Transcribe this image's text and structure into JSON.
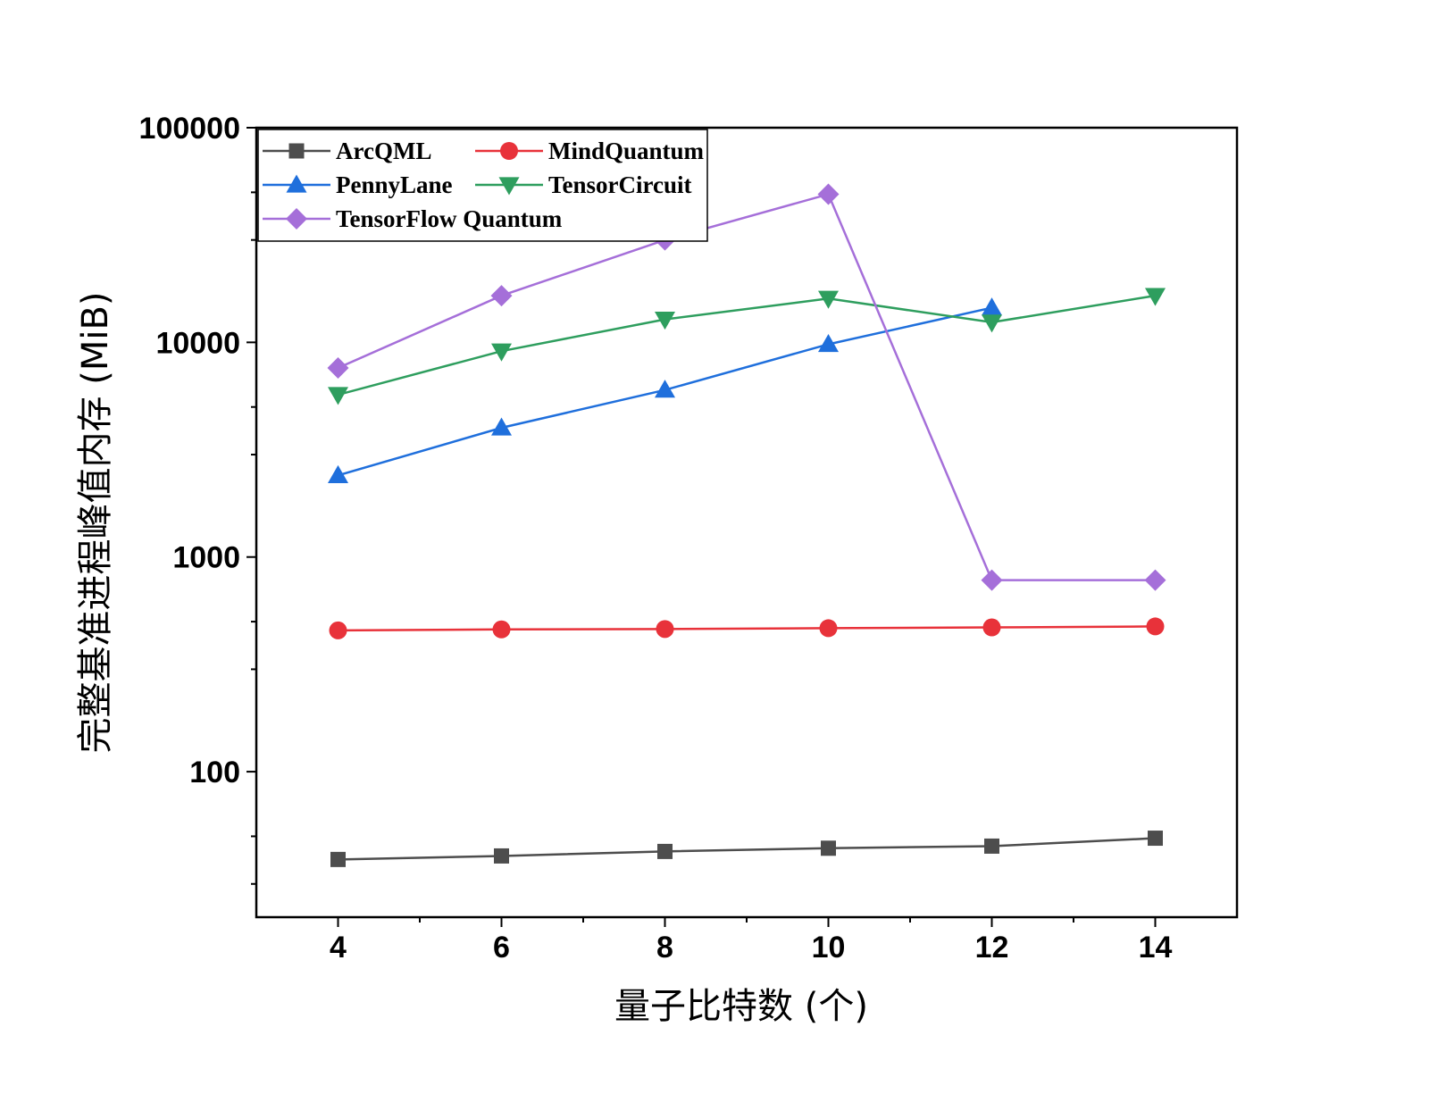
{
  "chart_data": {
    "type": "line",
    "x": [
      4,
      6,
      8,
      10,
      12,
      14
    ],
    "xlabel": "量子比特数 (个)",
    "ylabel": "完整基准进程峰值内存 (MiB)",
    "yscale": "log",
    "xlim": [
      3,
      15
    ],
    "ylim": [
      21,
      100000
    ],
    "xticks": [
      "4",
      "6",
      "8",
      "10",
      "12",
      "14"
    ],
    "yticks": [
      "100",
      "1000",
      "10000",
      "100000"
    ],
    "grid": false,
    "legend_position": "top-left",
    "series": [
      {
        "name": "ArcQML",
        "color": "#4d4d4d",
        "marker": "square",
        "x": [
          4,
          6,
          8,
          10,
          12,
          14
        ],
        "values": [
          39,
          40.5,
          42.5,
          44,
          45,
          49
        ]
      },
      {
        "name": "MindQuantum",
        "color": "#e8323a",
        "marker": "circle",
        "x": [
          4,
          6,
          8,
          10,
          12,
          14
        ],
        "values": [
          455,
          460,
          462,
          466,
          470,
          475
        ]
      },
      {
        "name": "PennyLane",
        "color": "#1f6fdc",
        "marker": "triangle-up",
        "x": [
          4,
          6,
          8,
          10,
          12
        ],
        "values": [
          2400,
          4000,
          6000,
          9800,
          14500
        ]
      },
      {
        "name": "TensorCircuit",
        "color": "#2e9e5e",
        "marker": "triangle-down",
        "x": [
          4,
          6,
          8,
          10,
          12,
          14
        ],
        "values": [
          5700,
          9100,
          12800,
          16000,
          12400,
          16500
        ]
      },
      {
        "name": "TensorFlow Quantum",
        "color": "#a56fd9",
        "marker": "diamond",
        "x": [
          4,
          6,
          8,
          10,
          12,
          14
        ],
        "values": [
          7600,
          16500,
          30000,
          49000,
          780,
          780
        ]
      }
    ]
  }
}
